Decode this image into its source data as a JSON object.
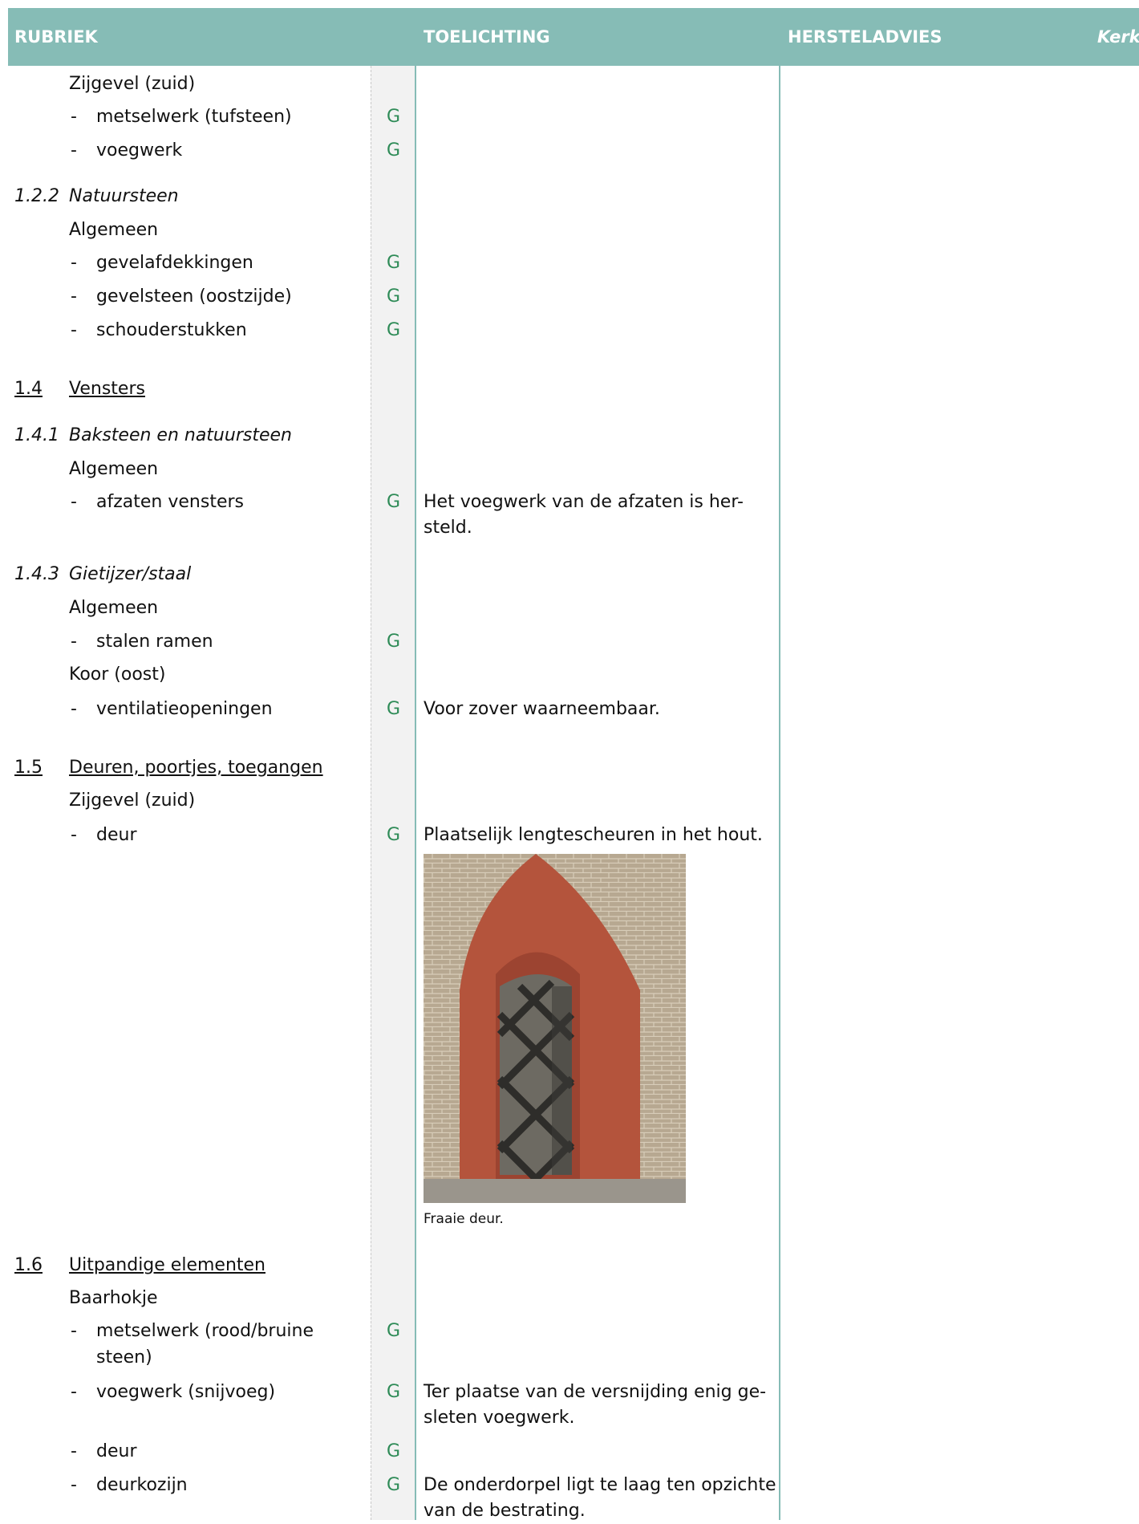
{
  "header": {
    "columns": [
      "RUBRIEK",
      "TOELICHTING",
      "HERSTELADVIES",
      "Kerk"
    ]
  },
  "rows": [
    {
      "text": "Zijgevel (zuid)"
    },
    {
      "marker": "-",
      "text": "metselwerk (tufsteen)",
      "grade": "G"
    },
    {
      "marker": "-",
      "text": "voegwerk",
      "grade": "G"
    },
    {
      "number": "1.2.2",
      "text": "Natuursteen",
      "style": "italic"
    },
    {
      "text": "Algemeen"
    },
    {
      "marker": "-",
      "text": "gevelafdekkingen",
      "grade": "G"
    },
    {
      "marker": "-",
      "text": "gevelsteen (oostzijde)",
      "grade": "G"
    },
    {
      "marker": "-",
      "text": "schouderstukken",
      "grade": "G"
    },
    {
      "number": "1.4",
      "text": "Vensters",
      "style": "underline"
    },
    {
      "number": "1.4.1",
      "text": "Baksteen en natuursteen",
      "style": "italic"
    },
    {
      "text": "Algemeen"
    },
    {
      "marker": "-",
      "text": "afzaten vensters",
      "grade": "G",
      "note": [
        "Het voegwerk van de afzaten is her-",
        "steld."
      ]
    },
    {
      "number": "1.4.3",
      "text": "Gietijzer/staal",
      "style": "italic"
    },
    {
      "text": "Algemeen"
    },
    {
      "marker": "-",
      "text": "stalen ramen",
      "grade": "G"
    },
    {
      "text": "Koor (oost)"
    },
    {
      "marker": "-",
      "text": "ventilatieopeningen",
      "grade": "G",
      "note": [
        "Voor zover waarneembaar."
      ]
    },
    {
      "number": "1.5",
      "text": "Deuren, poortjes, toegangen",
      "style": "underline"
    },
    {
      "text": "Zijgevel (zuid)"
    },
    {
      "marker": "-",
      "text": "deur",
      "grade": "G",
      "note": [
        "Plaatselijk lengtescheuren in het hout."
      ],
      "photo_caption": "Fraaie deur."
    },
    {
      "number": "1.6",
      "text": "Uitpandige elementen",
      "style": "underline"
    },
    {
      "text": "Baarhokje"
    },
    {
      "marker": "-",
      "text": "metselwerk (rood/bruine steen)",
      "grade": "G"
    },
    {
      "marker": "-",
      "text": "voegwerk (snijvoeg)",
      "grade": "G",
      "note": [
        "Ter plaatse van de versnijding enig ge-",
        "sleten voegwerk."
      ]
    },
    {
      "marker": "-",
      "text": "deur",
      "grade": "G"
    },
    {
      "marker": "-",
      "text": "deurkozijn",
      "grade": "G",
      "note": [
        "De onderdorpel ligt te laag ten opzichte",
        "van de bestrating."
      ]
    }
  ]
}
